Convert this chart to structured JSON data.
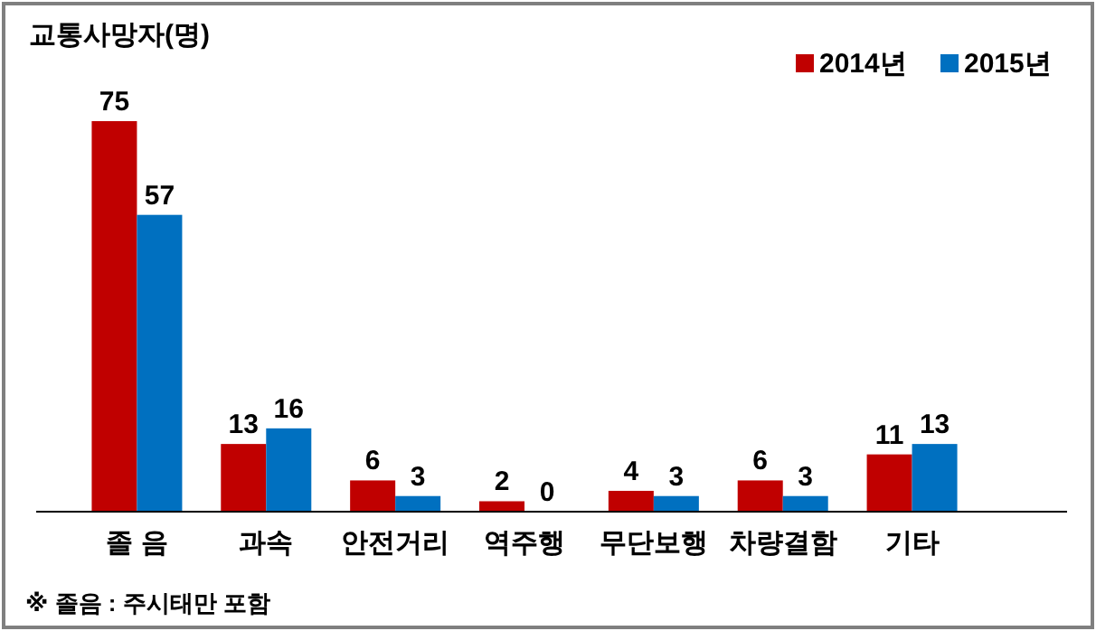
{
  "chart_data": {
    "type": "bar",
    "ylabel": "교통사망자(명)",
    "categories": [
      "졸 음",
      "과속",
      "안전거리",
      "역주행",
      "무단보행",
      "차량결함",
      "기타"
    ],
    "series": [
      {
        "name": "2014년",
        "color": "#c00000",
        "values": [
          75,
          13,
          6,
          2,
          4,
          6,
          11
        ]
      },
      {
        "name": "2015년",
        "color": "#0070c0",
        "values": [
          57,
          16,
          3,
          0,
          3,
          3,
          13
        ]
      }
    ],
    "data_labels": true,
    "legend": "top right",
    "annotations": [
      "※ 졸음 : 주시태만 포함"
    ]
  }
}
